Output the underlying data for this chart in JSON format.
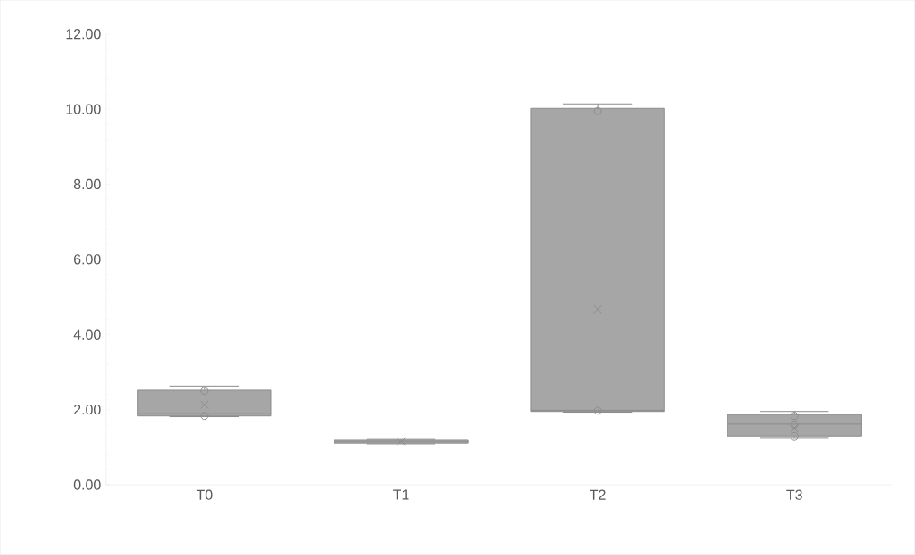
{
  "chart_data": {
    "type": "box",
    "categories": [
      "T0",
      "T1",
      "T2",
      "T3"
    ],
    "color": "#a6a6a6",
    "boxes": [
      {
        "low": 1.81,
        "q1": 1.83,
        "median": 1.89,
        "q3": 2.52,
        "high": 2.63,
        "mean": 2.13
      },
      {
        "low": 1.08,
        "q1": 1.1,
        "median": 1.15,
        "q3": 1.2,
        "high": 1.22,
        "mean": 1.15
      },
      {
        "low": 1.93,
        "q1": 1.95,
        "median": 1.98,
        "q3": 10.02,
        "high": 10.14,
        "mean": 4.67
      },
      {
        "low": 1.25,
        "q1": 1.29,
        "median": 1.61,
        "q3": 1.87,
        "high": 1.95,
        "mean": 1.51
      }
    ],
    "series": [
      {
        "type": "scatter",
        "color": "#8c8c8c",
        "x": [
          "T0",
          "T0",
          "T2",
          "T2",
          "T3",
          "T3",
          "T3"
        ],
        "values": [
          2.5,
          1.83,
          9.95,
          1.97,
          1.83,
          1.6,
          1.29
        ]
      }
    ],
    "marker": "circle",
    "ylim": [
      0,
      12
    ],
    "yticks": [
      {
        "value": 0,
        "label": "0.00"
      },
      {
        "value": 2,
        "label": "2.00"
      },
      {
        "value": 4,
        "label": "4.00"
      },
      {
        "value": 6,
        "label": "6.00"
      },
      {
        "value": 8,
        "label": "8.00"
      },
      {
        "value": 10,
        "label": "10.00"
      },
      {
        "value": 12,
        "label": "12.00"
      }
    ],
    "grid": false,
    "legend": false
  }
}
